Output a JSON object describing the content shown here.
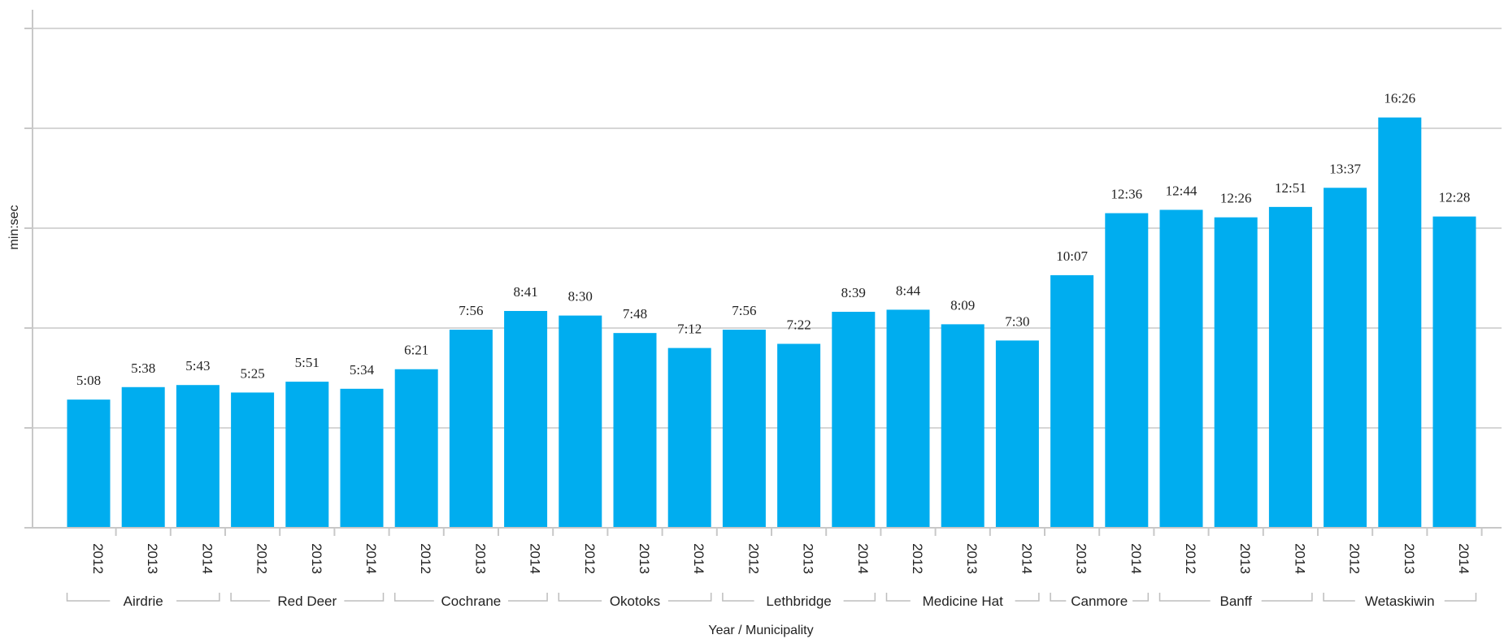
{
  "chart_data": {
    "type": "bar",
    "xlabel": "Year / Municipality",
    "ylabel": "min:sec",
    "ylim": [
      0,
      1200
    ],
    "y_gridlines": [
      0,
      240,
      480,
      720,
      960,
      1200
    ],
    "grid": true,
    "legend": "none",
    "bar_color": "#00adef",
    "groups": [
      {
        "name": "Airdrie",
        "bars": [
          {
            "year": "2012",
            "seconds": 308,
            "label": "5:08"
          },
          {
            "year": "2013",
            "seconds": 338,
            "label": "5:38"
          },
          {
            "year": "2014",
            "seconds": 343,
            "label": "5:43"
          }
        ]
      },
      {
        "name": "Red Deer",
        "bars": [
          {
            "year": "2012",
            "seconds": 325,
            "label": "5:25"
          },
          {
            "year": "2013",
            "seconds": 351,
            "label": "5:51"
          },
          {
            "year": "2014",
            "seconds": 334,
            "label": "5:34"
          }
        ]
      },
      {
        "name": "Cochrane",
        "bars": [
          {
            "year": "2012",
            "seconds": 381,
            "label": "6:21"
          },
          {
            "year": "2013",
            "seconds": 476,
            "label": "7:56"
          },
          {
            "year": "2014",
            "seconds": 521,
            "label": "8:41"
          }
        ]
      },
      {
        "name": "Okotoks",
        "bars": [
          {
            "year": "2012",
            "seconds": 510,
            "label": "8:30"
          },
          {
            "year": "2013",
            "seconds": 468,
            "label": "7:48"
          },
          {
            "year": "2014",
            "seconds": 432,
            "label": "7:12"
          }
        ]
      },
      {
        "name": "Lethbridge",
        "bars": [
          {
            "year": "2012",
            "seconds": 476,
            "label": "7:56"
          },
          {
            "year": "2013",
            "seconds": 442,
            "label": "7:22"
          },
          {
            "year": "2014",
            "seconds": 519,
            "label": "8:39"
          }
        ]
      },
      {
        "name": "Medicine Hat",
        "bars": [
          {
            "year": "2012",
            "seconds": 524,
            "label": "8:44"
          },
          {
            "year": "2013",
            "seconds": 489,
            "label": "8:09"
          },
          {
            "year": "2014",
            "seconds": 450,
            "label": "7:30"
          }
        ]
      },
      {
        "name": "Canmore",
        "bars": [
          {
            "year": "2013",
            "seconds": 607,
            "label": "10:07"
          },
          {
            "year": "2014",
            "seconds": 756,
            "label": "12:36"
          }
        ]
      },
      {
        "name": "Banff",
        "bars": [
          {
            "year": "2012",
            "seconds": 764,
            "label": "12:44"
          },
          {
            "year": "2013",
            "seconds": 746,
            "label": "12:26"
          },
          {
            "year": "2014",
            "seconds": 771,
            "label": "12:51"
          }
        ]
      },
      {
        "name": "Wetaskiwin",
        "bars": [
          {
            "year": "2012",
            "seconds": 817,
            "label": "13:37"
          },
          {
            "year": "2013",
            "seconds": 986,
            "label": "16:26"
          },
          {
            "year": "2014",
            "seconds": 748,
            "label": "12:28"
          }
        ]
      }
    ]
  }
}
